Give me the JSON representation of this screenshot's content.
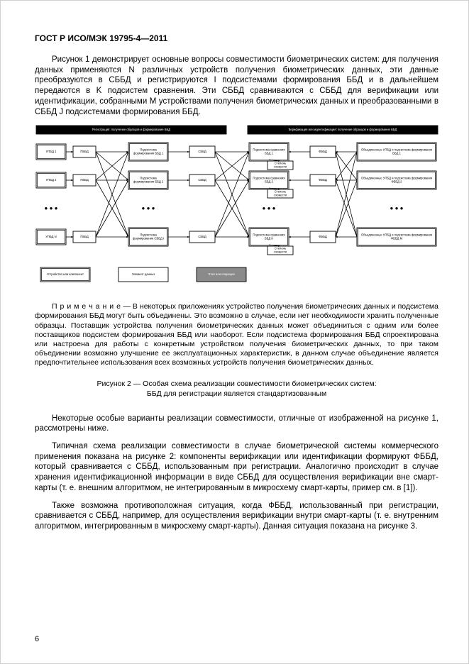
{
  "header": "ГОСТ Р ИСО/МЭК 19795-4—2011",
  "p1": "Рисунок 1 демонстрирует основные вопросы совместимости биометрических систем: для получения данных применяются N различных устройств получения биометрических данных, эти данные преобразуются в СББД и регистрируются I подсистемами формирования ББД и в дальнейшем передаются в K подсистем сравнения. Эти СББД сравниваются с СББД для верификации или идентификации, собранными M устройствами получения биометрических данных и преобразованными в СББД J подсистемами формирования ББД.",
  "note_label": "П р и м е ч а н и е",
  "note_body": " — В некоторых приложениях устройство получения биометрических данных и подсистема формирования ББД могут быть объединены. Это возможно в случае, если нет необходимости хранить полученные образцы. Поставщик устройства получения биометрических данных может объединиться с одним или более поставщиков подсистем формирования ББД или наоборот. Если подсистема формирования ББД спроектирована или настроена для работы с конкретным устройством получения биометрических данных, то при таком объединении возможно улучшение ее эксплуатационных характеристик, в данном случае объединение является предпочтительнее использования всех возможных устройств получения биометрических данных.",
  "fig2_caption_l1": "Рисунок 2 — Особая схема реализации совместимости биометрических систем:",
  "fig2_caption_l2": "ББД для регистрации является стандартизованным",
  "p2": "Некоторые особые варианты реализации совместимости, отличные от изображенной на рисунке 1, рассмотрены ниже.",
  "p3": "Типичная схема реализации совместимости в случае биометрической системы коммерческого применения показана на рисунке 2: компоненты верификации или идентификации формируют ФББД, который сравнивается с СББД, использованным при регистрации. Аналогично происходит в случае хранения идентификационной информации в виде СББД для осуществления верификации вне смарт-карты (т. е. внешним алгоритмом, не интегрированным в микросхему смарт-карты, пример см. в [1]).",
  "p4": "Также возможна противоположная ситуация, когда ФББД, использованный при регистрации, сравнивается с СББД, например, для осуществления верификации внутри смарт-карты (т. е. внутренним алгоритмом, интегрированным в микросхему смарт-карты). Данная ситуация показана на рисунке 3.",
  "page_num": "6",
  "diagram": {
    "title_left": "Регистрация: получение образцов и формирование ББД",
    "title_right": "Верификация или идентификация: получение образцов и формирование ББД",
    "rows": [
      {
        "upbd": "УПБД 1",
        "pbds": "ПББД",
        "pf": "Подсистема формирования ББД 1",
        "sbbd": "СББД",
        "ps": "Подсистема сравнения ББД 1",
        "ss": "Степень схожести",
        "fbbd": "ФББД",
        "obj": "Объединенные УПБД и подсистема формирования ББД 1"
      },
      {
        "upbd": "УПБД 2",
        "pbds": "ПББД",
        "pf": "Подсистема формирования ББД 2",
        "sbbd": "СББД",
        "ps": "Подсистема сравнения ББД 2",
        "ss": "Степень схожести",
        "fbbd": "ФББД",
        "obj": "Объединенные УПБД и подсистема формирования ФББД 2"
      },
      {
        "dots": true
      },
      {
        "upbd": "УПБД N",
        "pbds": "ПББД",
        "pf": "Подсистема формирования СББД I",
        "sbbd": "СББД",
        "ps": "Подсистема сравнения ББД K",
        "ss": "Степень схожести",
        "fbbd": "ФББД",
        "obj": "Объединенные УПБД и подсистема формирования ФББД M"
      }
    ],
    "legend": [
      {
        "label": "Устройство или компонент",
        "fill": "#ffffff",
        "stroke": "#000000",
        "double": true
      },
      {
        "label": "Элемент данных",
        "fill": "#ffffff",
        "stroke": "#000000",
        "double": false
      },
      {
        "label": "Этап или операция",
        "fill": "#8a8a8a",
        "stroke": "#000000",
        "double": false,
        "text": "#ffffff"
      }
    ],
    "colors": {
      "box_stroke": "#000000",
      "box_fill": "#ffffff",
      "op_fill": "#8a8a8a",
      "op_text": "#ffffff",
      "line": "#000000",
      "title_bg": "#000000",
      "title_text": "#ffffff"
    },
    "fontsize": 4.2
  }
}
